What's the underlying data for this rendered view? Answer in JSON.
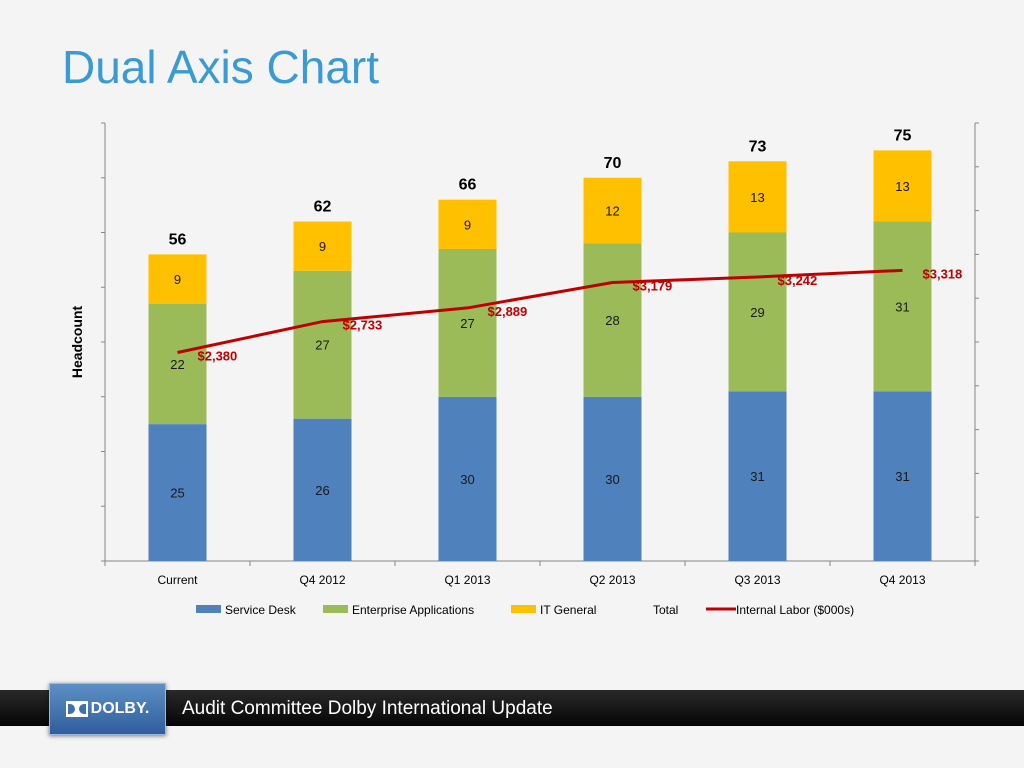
{
  "slide": {
    "title": "Dual Axis Chart",
    "footer_text": "Audit Committee Dolby International Update",
    "logo_text": "DOLBY."
  },
  "colors": {
    "title": "#3a9ad3",
    "service_desk": "#4f81bd",
    "enterprise_applications": "#9bbb59",
    "it_general": "#ffc000",
    "internal_labor": "#c00000"
  },
  "chart_data": {
    "type": "bar",
    "stacked": true,
    "categories": [
      "Current",
      "Q4 2012",
      "Q1 2013",
      "Q2 2013",
      "Q3 2013",
      "Q4 2013"
    ],
    "ylabel": "Headcount",
    "ylim": [
      0,
      80
    ],
    "y2lim": [
      0,
      5000
    ],
    "series": [
      {
        "name": "Service Desk",
        "values": [
          25,
          26,
          30,
          30,
          31,
          31
        ]
      },
      {
        "name": "Enterprise Applications",
        "values": [
          22,
          27,
          27,
          28,
          29,
          31
        ]
      },
      {
        "name": "IT General",
        "values": [
          9,
          9,
          9,
          12,
          13,
          13
        ]
      }
    ],
    "totals": {
      "name": "Total",
      "values": [
        56,
        62,
        66,
        70,
        73,
        75
      ]
    },
    "line_series": {
      "name": "Internal Labor ($000s)",
      "values": [
        2380,
        2733,
        2889,
        3179,
        3242,
        3318
      ],
      "labels": [
        "$2,380",
        "$2,733",
        "$2,889",
        "$3,179",
        "$3,242",
        "$3,318"
      ]
    },
    "legend": [
      "Service Desk",
      "Enterprise Applications",
      "IT General",
      "Total",
      "Internal Labor ($000s)"
    ],
    "legend_position": "bottom",
    "grid": false
  }
}
